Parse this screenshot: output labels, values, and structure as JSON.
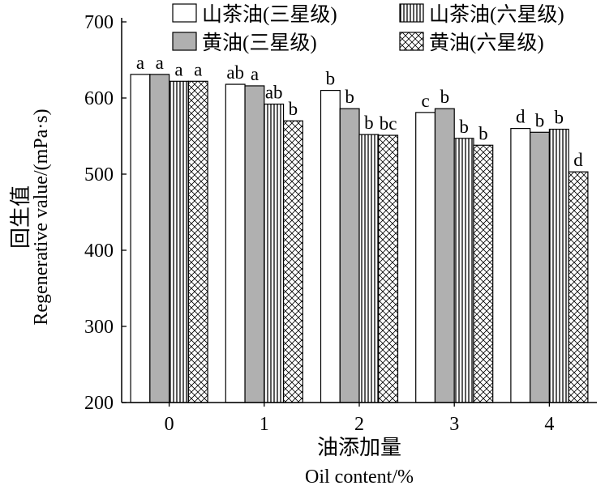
{
  "chart_data": {
    "type": "bar",
    "categories": [
      "0",
      "1",
      "2",
      "3",
      "4"
    ],
    "series": [
      {
        "name": "山茶油(三星级)",
        "values": [
          631,
          618,
          610,
          581,
          560
        ],
        "labels": [
          "a",
          "ab",
          "b",
          "c",
          "d"
        ],
        "fill": "#ffffff",
        "pattern": "solid"
      },
      {
        "name": "黄油(三星级)",
        "values": [
          631,
          616,
          586,
          586,
          555
        ],
        "labels": [
          "a",
          "a",
          "b",
          "b",
          "b"
        ],
        "fill": "#b0b0b0",
        "pattern": "solid"
      },
      {
        "name": "山茶油(六星级)",
        "values": [
          622,
          592,
          552,
          547,
          559
        ],
        "labels": [
          "a",
          "ab",
          "b",
          "b",
          "b"
        ],
        "fill": "#ffffff",
        "pattern": "vertical-lines"
      },
      {
        "name": "黄油(六星级)",
        "values": [
          622,
          570,
          551,
          538,
          503
        ],
        "labels": [
          "a",
          "b",
          "bc",
          "b",
          "d"
        ],
        "fill": "#ffffff",
        "pattern": "crosshatch"
      }
    ],
    "xlabel": "油添加量",
    "xlabel_en": "Oil content/%",
    "ylabel": "回生值",
    "ylabel_en": "Regenerative value/(mPa·s)",
    "ylim": [
      200,
      700
    ],
    "yticks": [
      200,
      300,
      400,
      500,
      600,
      700
    ],
    "grid": false,
    "legend": "top"
  }
}
